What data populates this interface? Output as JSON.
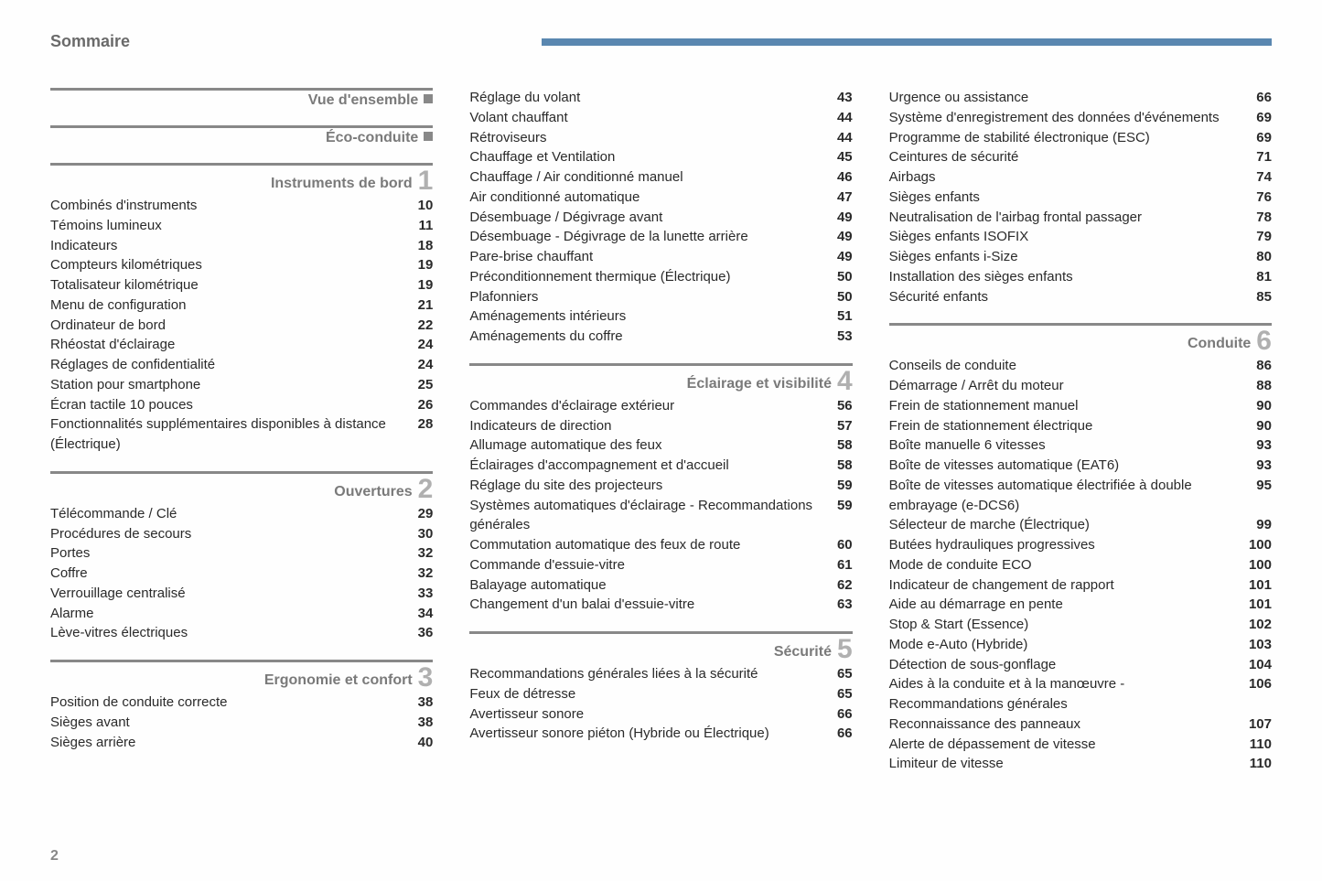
{
  "page": {
    "title": "Sommaire",
    "number": "2",
    "header_bar_color": "#5a87b0"
  },
  "columns": [
    {
      "sections": [
        {
          "title": "Vue d'ensemble",
          "marker": true,
          "entries": []
        },
        {
          "title": "Éco-conduite",
          "marker": true,
          "entries": []
        },
        {
          "title": "Instruments de bord",
          "number": "1",
          "entries": [
            {
              "label": "Combinés d'instruments",
              "page": "10"
            },
            {
              "label": "Témoins lumineux",
              "page": "11"
            },
            {
              "label": "Indicateurs",
              "page": "18"
            },
            {
              "label": "Compteurs kilométriques",
              "page": "19"
            },
            {
              "label": "Totalisateur kilométrique",
              "page": "19"
            },
            {
              "label": "Menu de configuration",
              "page": "21"
            },
            {
              "label": "Ordinateur de bord",
              "page": "22"
            },
            {
              "label": "Rhéostat d'éclairage",
              "page": "24"
            },
            {
              "label": "Réglages de confidentialité",
              "page": "24"
            },
            {
              "label": "Station pour smartphone",
              "page": "25"
            },
            {
              "label": "Écran tactile 10 pouces",
              "page": "26"
            },
            {
              "label": "Fonctionnalités supplémentaires disponibles à distance (Électrique)",
              "page": "28"
            }
          ]
        },
        {
          "title": "Ouvertures",
          "number": "2",
          "entries": [
            {
              "label": "Télécommande / Clé",
              "page": "29"
            },
            {
              "label": "Procédures de secours",
              "page": "30"
            },
            {
              "label": "Portes",
              "page": "32"
            },
            {
              "label": "Coffre",
              "page": "32"
            },
            {
              "label": "Verrouillage centralisé",
              "page": "33"
            },
            {
              "label": "Alarme",
              "page": "34"
            },
            {
              "label": "Lève-vitres électriques",
              "page": "36"
            }
          ]
        },
        {
          "title": "Ergonomie et confort",
          "number": "3",
          "entries": [
            {
              "label": "Position de conduite correcte",
              "page": "38"
            },
            {
              "label": "Sièges avant",
              "page": "38"
            },
            {
              "label": "Sièges arrière",
              "page": "40"
            }
          ]
        }
      ]
    },
    {
      "sections": [
        {
          "title": null,
          "entries": [
            {
              "label": "Réglage du volant",
              "page": "43"
            },
            {
              "label": "Volant chauffant",
              "page": "44"
            },
            {
              "label": "Rétroviseurs",
              "page": "44"
            },
            {
              "label": "Chauffage et Ventilation",
              "page": "45"
            },
            {
              "label": "Chauffage / Air conditionné manuel",
              "page": "46"
            },
            {
              "label": "Air conditionné automatique",
              "page": "47"
            },
            {
              "label": "Désembuage / Dégivrage avant",
              "page": "49"
            },
            {
              "label": "Désembuage - Dégivrage de la lunette arrière",
              "page": "49"
            },
            {
              "label": "Pare-brise chauffant",
              "page": "49"
            },
            {
              "label": "Préconditionnement thermique (Électrique)",
              "page": "50"
            },
            {
              "label": "Plafonniers",
              "page": "50"
            },
            {
              "label": "Aménagements intérieurs",
              "page": "51"
            },
            {
              "label": "Aménagements du coffre",
              "page": "53"
            }
          ]
        },
        {
          "title": "Éclairage et visibilité",
          "number": "4",
          "entries": [
            {
              "label": "Commandes d'éclairage extérieur",
              "page": "56"
            },
            {
              "label": "Indicateurs de direction",
              "page": "57"
            },
            {
              "label": "Allumage automatique des feux",
              "page": "58"
            },
            {
              "label": "Éclairages d'accompagnement et d'accueil",
              "page": "58"
            },
            {
              "label": "Réglage du site des projecteurs",
              "page": "59"
            },
            {
              "label": "Systèmes automatiques d'éclairage - Recommandations générales",
              "page": "59"
            },
            {
              "label": "Commutation automatique des feux de route",
              "page": "60"
            },
            {
              "label": "Commande d'essuie-vitre",
              "page": "61"
            },
            {
              "label": "Balayage automatique",
              "page": "62"
            },
            {
              "label": "Changement d'un balai d'essuie-vitre",
              "page": "63"
            }
          ]
        },
        {
          "title": "Sécurité",
          "number": "5",
          "entries": [
            {
              "label": "Recommandations générales liées à la sécurité",
              "page": "65"
            },
            {
              "label": "Feux de détresse",
              "page": "65"
            },
            {
              "label": "Avertisseur sonore",
              "page": "66"
            },
            {
              "label": "Avertisseur sonore piéton (Hybride ou Électrique)",
              "page": "66"
            }
          ]
        }
      ]
    },
    {
      "sections": [
        {
          "title": null,
          "entries": [
            {
              "label": "Urgence ou assistance",
              "page": "66"
            },
            {
              "label": "Système d'enregistrement des données d'événements",
              "page": "69"
            },
            {
              "label": "Programme de stabilité électronique (ESC)",
              "page": "69"
            },
            {
              "label": "Ceintures de sécurité",
              "page": "71"
            },
            {
              "label": "Airbags",
              "page": "74"
            },
            {
              "label": "Sièges enfants",
              "page": "76"
            },
            {
              "label": "Neutralisation de l'airbag frontal passager",
              "page": "78"
            },
            {
              "label": "Sièges enfants ISOFIX",
              "page": "79"
            },
            {
              "label": "Sièges enfants i-Size",
              "page": "80"
            },
            {
              "label": "Installation des sièges enfants",
              "page": "81"
            },
            {
              "label": "Sécurité enfants",
              "page": "85"
            }
          ]
        },
        {
          "title": "Conduite",
          "number": "6",
          "entries": [
            {
              "label": "Conseils de conduite",
              "page": "86"
            },
            {
              "label": "Démarrage / Arrêt du moteur",
              "page": "88"
            },
            {
              "label": "Frein de stationnement manuel",
              "page": "90"
            },
            {
              "label": "Frein de stationnement électrique",
              "page": "90"
            },
            {
              "label": "Boîte manuelle 6 vitesses",
              "page": "93"
            },
            {
              "label": "Boîte de vitesses automatique (EAT6)",
              "page": "93"
            },
            {
              "label": "Boîte de vitesses automatique électrifiée à double embrayage (e-DCS6)",
              "page": "95"
            },
            {
              "label": "Sélecteur de marche (Électrique)",
              "page": "99"
            },
            {
              "label": "Butées hydrauliques progressives",
              "page": "100"
            },
            {
              "label": "Mode de conduite ECO",
              "page": "100"
            },
            {
              "label": "Indicateur de changement de rapport",
              "page": "101"
            },
            {
              "label": "Aide au démarrage en pente",
              "page": "101"
            },
            {
              "label": "Stop & Start (Essence)",
              "page": "102"
            },
            {
              "label": "Mode e-Auto (Hybride)",
              "page": "103"
            },
            {
              "label": "Détection de sous-gonflage",
              "page": "104"
            },
            {
              "label": "Aides à la conduite et à la manœuvre - Recommandations générales",
              "page": "106"
            },
            {
              "label": "Reconnaissance des panneaux",
              "page": "107"
            },
            {
              "label": "Alerte de dépassement de vitesse",
              "page": "110"
            },
            {
              "label": "Limiteur de vitesse",
              "page": "110"
            }
          ]
        }
      ]
    }
  ]
}
